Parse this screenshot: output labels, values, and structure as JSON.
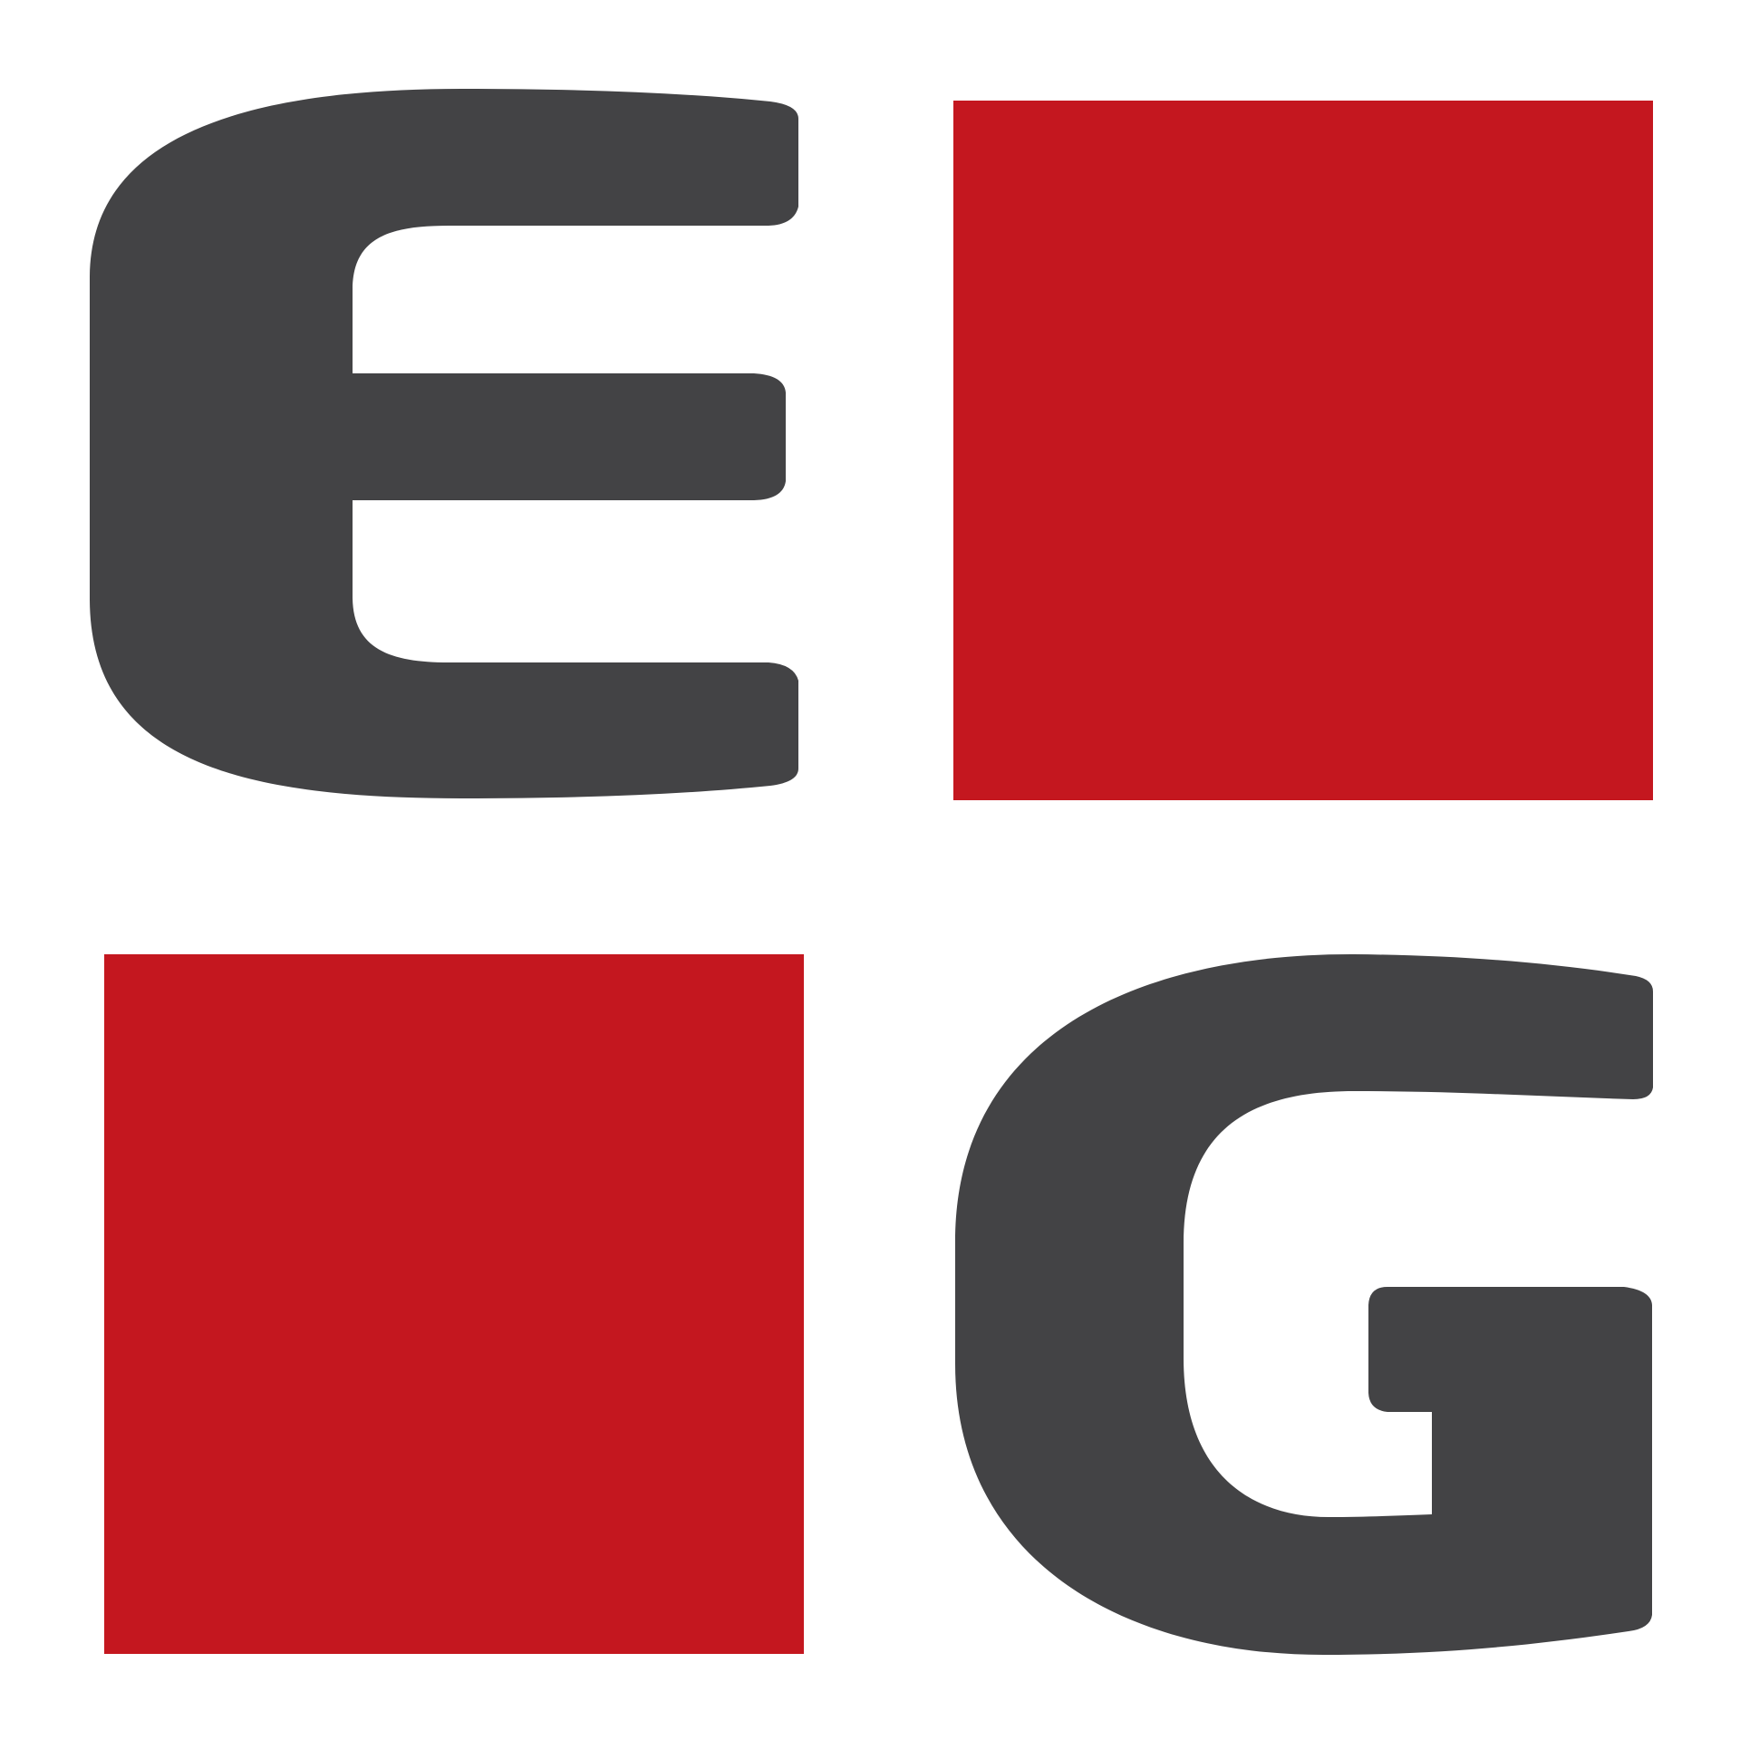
{
  "logo": {
    "letters": [
      "E",
      "G"
    ],
    "colors": {
      "letter": "#434345",
      "square": "#c4171f",
      "background": "#ffffff"
    }
  }
}
